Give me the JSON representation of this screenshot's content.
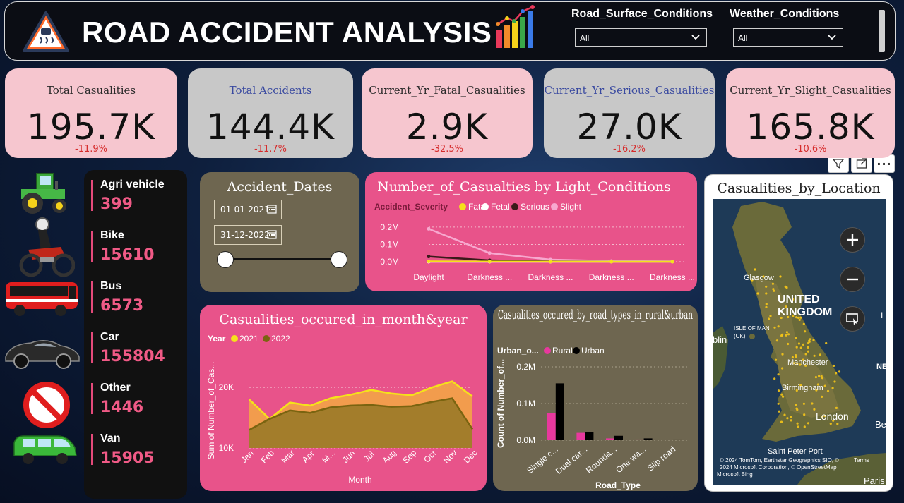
{
  "header": {
    "title": "ROAD ACCIDENT ANALYSIS",
    "filters": [
      {
        "label": "Road_Surface_Conditions",
        "value": "All"
      },
      {
        "label": "Weather_Conditions",
        "value": "All"
      }
    ]
  },
  "kpis": [
    {
      "title": "Total Casualities",
      "value": "195.7K",
      "delta": "-11.9%",
      "bg": "#f6c6cf",
      "title_color": "#2a2a2a"
    },
    {
      "title": "Total Accidents",
      "value": "144.4K",
      "delta": "-11.7%",
      "bg": "#c8c8c8",
      "title_color": "#3a4aa0"
    },
    {
      "title": "Current_Yr_Fatal_Casualities",
      "value": "2.9K",
      "delta": "-32.5%",
      "bg": "#f6c6cf",
      "title_color": "#2a2a2a"
    },
    {
      "title": "Current_Yr_Serious_Casualities",
      "value": "27.0K",
      "delta": "-16.2%",
      "bg": "#c8c8c8",
      "title_color": "#3a4aa0"
    },
    {
      "title": "Current_Yr_Slight_Casualities",
      "value": "165.8K",
      "delta": "-10.6%",
      "bg": "#f6c6cf",
      "title_color": "#2a2a2a"
    }
  ],
  "vehicles": [
    {
      "name": "Agri vehicle",
      "count": "399",
      "icon": "tractor-icon"
    },
    {
      "name": "Bike",
      "count": "15610",
      "icon": "motorbike-icon"
    },
    {
      "name": "Bus",
      "count": "6573",
      "icon": "bus-icon"
    },
    {
      "name": "Car",
      "count": "155804",
      "icon": "car-icon"
    },
    {
      "name": "Other",
      "count": "1446",
      "icon": "no-entry-icon"
    },
    {
      "name": "Van",
      "count": "15905",
      "icon": "van-icon"
    }
  ],
  "dates": {
    "title": "Accident_Dates",
    "start": "01-01-2021",
    "end": "31-12-2022"
  },
  "visual_header": {
    "icons": [
      "filter-icon",
      "focus-mode-icon",
      "more-options-icon"
    ],
    "more": "···"
  },
  "map": {
    "title": "Casualities_by_Location",
    "labels": {
      "glasgow": "Glasgow",
      "uk": "UNITED KINGDOM",
      "iom": "ISLE OF MAN (UK)",
      "dublin": "blin",
      "manchester": "Manchester",
      "birmingham": "Birmingham",
      "london": "London",
      "spb": "Saint Peter Port",
      "paris": "Paris",
      "ne": "NE",
      "bel": "Bel",
      "i": "I"
    },
    "attribution": "© 2024 TomTom, Earthstar Geographics SIO, © 2024 Microsoft Corporation, © OpenStreetMap",
    "terms": "Terms",
    "bing": "Microsoft Bing"
  },
  "chart_data": [
    {
      "type": "line",
      "title": "Number_of_Casualties by Light_Conditions",
      "legend_title": "Accident_Severity",
      "categories": [
        "Daylight",
        "Darkness ...",
        "Darkness ...",
        "Darkness ...",
        "Darkness ..."
      ],
      "yticks": [
        "0.0M",
        "0.1M",
        "0.2M"
      ],
      "ylim": [
        0,
        0.22
      ],
      "series": [
        {
          "name": "Fatal",
          "color": "#f5e21a",
          "values": [
            0.002,
            0.001,
            0.0005,
            0.0002,
            0.0002
          ]
        },
        {
          "name": "Fetal",
          "color": "#ffffff",
          "values": [
            0.0,
            0.0,
            0.0,
            0.0,
            0.0
          ]
        },
        {
          "name": "Serious",
          "color": "#3a1a1a",
          "values": [
            0.03,
            0.008,
            0.002,
            0.001,
            0.0005
          ]
        },
        {
          "name": "Slight",
          "color": "#f7a8cf",
          "values": [
            0.19,
            0.05,
            0.012,
            0.004,
            0.002
          ]
        }
      ]
    },
    {
      "type": "area",
      "title": "Casualities_occured_in_month&year",
      "legend_title": "Year",
      "xlabel": "Month",
      "ylabel": "Sum of Number_of_Cas...",
      "categories": [
        "Jan",
        "Feb",
        "Mar",
        "Apr",
        "M...",
        "Jun",
        "Jul",
        "Aug",
        "Sep",
        "Oct",
        "Nov",
        "Dec"
      ],
      "yticks": [
        "10K",
        "20K"
      ],
      "ylim": [
        10000,
        22000
      ],
      "series": [
        {
          "name": "2021",
          "color": "#f5e21a",
          "values": [
            18000,
            14800,
            17500,
            17000,
            18200,
            18800,
            19600,
            19000,
            18700,
            20000,
            21000,
            18500
          ]
        },
        {
          "name": "2022",
          "color": "#7a6410",
          "values": [
            13000,
            14800,
            16200,
            15800,
            16700,
            17000,
            17100,
            16800,
            16900,
            17600,
            18200,
            13100
          ]
        }
      ]
    },
    {
      "type": "bar",
      "title": "Casualities_occured_by_road_types_in_rural&urban",
      "legend_title": "Urban_o...",
      "xlabel": "Road_Type",
      "ylabel": "Count of Number_of...",
      "categories": [
        "Single c...",
        "Dual car...",
        "Rounda...",
        "One wa...",
        "Slip road"
      ],
      "yticks": [
        "0.0M",
        "0.1M",
        "0.2M"
      ],
      "ylim": [
        0,
        0.2
      ],
      "series": [
        {
          "name": "Rural",
          "color": "#e8389e",
          "values": [
            0.075,
            0.02,
            0.005,
            0.002,
            0.001
          ]
        },
        {
          "name": "Urban",
          "color": "#000000",
          "values": [
            0.155,
            0.022,
            0.012,
            0.005,
            0.002
          ]
        }
      ]
    }
  ]
}
